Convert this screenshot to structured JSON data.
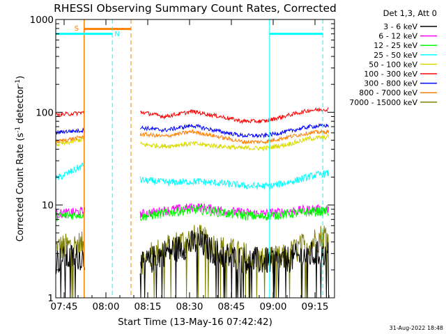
{
  "chart_data": {
    "type": "line",
    "title": "RHESSI Observing Summary Count Rates, Corrected",
    "xlabel": "Start Time (13-May-16 07:42:42)",
    "ylabel_main": "Corrected Count Rate (s",
    "ylabel_sup1": "-1",
    "ylabel_mid": " detector",
    "ylabel_sup2": "-1",
    "ylabel_end": ")",
    "yscale": "log",
    "ylim": [
      1,
      1000
    ],
    "xlim_minutes": [
      -3,
      97
    ],
    "x_ticks": [
      {
        "m": 0,
        "label": "07:45"
      },
      {
        "m": 15,
        "label": "08:00"
      },
      {
        "m": 30,
        "label": "08:15"
      },
      {
        "m": 45,
        "label": "08:30"
      },
      {
        "m": 60,
        "label": "08:45"
      },
      {
        "m": 75,
        "label": "09:00"
      },
      {
        "m": 90,
        "label": "09:15"
      }
    ],
    "y_ticks": [
      {
        "v": 1,
        "label": "1"
      },
      {
        "v": 10,
        "label": "10"
      },
      {
        "v": 100,
        "label": "100"
      },
      {
        "v": 1000,
        "label": "1000"
      }
    ],
    "legend_title": "Det 1,3, Att 0",
    "legend_position": "top-right, outside plot",
    "footer_date": "31-Aug-2022 18:48",
    "flag_labels": {
      "saa": "S",
      "night": "N"
    },
    "flags": {
      "saa_start": 7.2,
      "saa_end": 24.0,
      "night_start": 17.3,
      "night_end": 73.7,
      "night_start2": 92.8
    },
    "data_gap": [
      7.5,
      27.3
    ],
    "series": [
      {
        "name": "3 - 6 keV",
        "color": "#000000",
        "x": [
          -3,
          0,
          5,
          7,
          28,
          35,
          42,
          48,
          55,
          62,
          70,
          78,
          85,
          95
        ],
        "y": [
          2.5,
          2.6,
          2.8,
          2.7,
          2.2,
          3.0,
          3.5,
          4.0,
          3.0,
          2.6,
          2.5,
          2.5,
          2.8,
          3.0
        ]
      },
      {
        "name": "6 - 12 keV",
        "color": "#ff00ff",
        "x": [
          -3,
          7,
          28,
          40,
          48,
          60,
          70,
          80,
          90,
          95
        ],
        "y": [
          8,
          8.5,
          8,
          9,
          9.5,
          8.5,
          8,
          8.5,
          9,
          9
        ]
      },
      {
        "name": "12 - 25 keV",
        "color": "#00ff00",
        "x": [
          -3,
          7,
          28,
          40,
          48,
          60,
          70,
          80,
          90,
          95
        ],
        "y": [
          7.5,
          8,
          7.5,
          8.5,
          9,
          8,
          7.5,
          8,
          8.5,
          8.5
        ]
      },
      {
        "name": "25 - 50 keV",
        "color": "#00ffff",
        "x": [
          -3,
          0,
          5,
          7,
          28,
          38,
          48,
          58,
          66,
          74,
          82,
          90,
          95
        ],
        "y": [
          19,
          21,
          25,
          27,
          18.5,
          17.5,
          18,
          17,
          16,
          16,
          18,
          21,
          22
        ]
      },
      {
        "name": "50 - 100 keV",
        "color": "#d9d900",
        "x": [
          -3,
          0,
          5,
          7,
          28,
          36,
          46,
          56,
          64,
          72,
          80,
          88,
          95
        ],
        "y": [
          45,
          46,
          50,
          52,
          45,
          43,
          46,
          43,
          41,
          41,
          45,
          52,
          54
        ]
      },
      {
        "name": "100 - 300 keV",
        "color": "#ff0000",
        "x": [
          -3,
          0,
          5,
          7,
          28,
          36,
          46,
          56,
          64,
          72,
          80,
          88,
          95
        ],
        "y": [
          93,
          95,
          98,
          100,
          100,
          90,
          102,
          90,
          80,
          80,
          92,
          105,
          108
        ]
      },
      {
        "name": "300 - 800 keV",
        "color": "#0000ff",
        "x": [
          -3,
          0,
          5,
          7,
          28,
          36,
          46,
          56,
          64,
          72,
          80,
          88,
          95
        ],
        "y": [
          60,
          62,
          63,
          64,
          68,
          64,
          72,
          62,
          56,
          56,
          62,
          70,
          72
        ]
      },
      {
        "name": "800 - 7000 keV",
        "color": "#ff7f00",
        "x": [
          -3,
          0,
          5,
          7,
          28,
          36,
          46,
          56,
          64,
          72,
          80,
          88,
          95
        ],
        "y": [
          48,
          50,
          53,
          55,
          58,
          55,
          62,
          54,
          48,
          48,
          54,
          60,
          62
        ]
      },
      {
        "name": "7000 - 15000 keV",
        "color": "#7f7f00",
        "x": [
          -3,
          0,
          5,
          7,
          28,
          35,
          42,
          48,
          55,
          62,
          70,
          78,
          85,
          95
        ],
        "y": [
          3.5,
          3.5,
          3.8,
          3.6,
          2.5,
          3.3,
          4.0,
          4.5,
          3.5,
          3.0,
          2.6,
          2.6,
          3.5,
          5.0
        ]
      }
    ]
  }
}
